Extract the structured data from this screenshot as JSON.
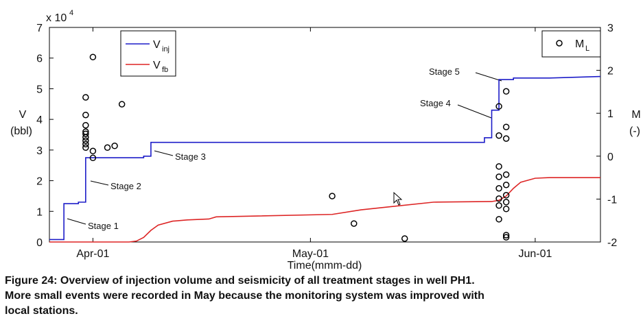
{
  "chart_data": {
    "type": "line",
    "axis_multiplier": "x 10",
    "axis_multiplier_exponent": "4",
    "y_label": [
      "V",
      "(bbl)"
    ],
    "y2_label": [
      "M",
      "(-)"
    ],
    "x_label": "Time(mmm-dd)",
    "xlim": [
      "Mar-26",
      "Jun-10"
    ],
    "xticks": [
      "Apr-01",
      "May-01",
      "Jun-01"
    ],
    "ylim": [
      0,
      70000
    ],
    "yticks": [
      {
        "value": 0,
        "label": "0"
      },
      {
        "value": 10000,
        "label": "1"
      },
      {
        "value": 20000,
        "label": "2"
      },
      {
        "value": 30000,
        "label": "3"
      },
      {
        "value": 40000,
        "label": "4"
      },
      {
        "value": 50000,
        "label": "5"
      },
      {
        "value": 60000,
        "label": "6"
      },
      {
        "value": 70000,
        "label": "7"
      }
    ],
    "y2lim": [
      -2,
      3
    ],
    "y2ticks": [
      -2,
      -1,
      0,
      1,
      2,
      3
    ],
    "series": [
      {
        "name": "V",
        "subscript": "inj",
        "color": "#1c1cc8",
        "x": [
          "Mar-26",
          "Mar-28",
          "Mar-28",
          "Mar-30",
          "Mar-30",
          "Mar-31",
          "Mar-31",
          "Apr-08",
          "Apr-08",
          "Apr-09",
          "Apr-09",
          "May-25",
          "May-25",
          "May-26",
          "May-26",
          "May-27",
          "May-27",
          "May-29",
          "May-29",
          "Jun-03",
          "Jun-10"
        ],
        "values": [
          800,
          800,
          12500,
          12500,
          13000,
          13000,
          27500,
          27500,
          28000,
          28000,
          32500,
          32500,
          34000,
          34000,
          43000,
          43000,
          53000,
          53000,
          53500,
          53500,
          54000
        ]
      },
      {
        "name": "V",
        "subscript": "fb",
        "color": "#dd2424",
        "x": [
          "Mar-26",
          "Apr-06",
          "Apr-07",
          "Apr-08",
          "Apr-09",
          "Apr-10",
          "Apr-12",
          "Apr-14",
          "Apr-17",
          "Apr-18",
          "May-04",
          "May-08",
          "May-12",
          "May-18",
          "May-26",
          "May-27",
          "May-28",
          "May-29",
          "May-30",
          "Jun-01",
          "Jun-03",
          "Jun-10"
        ],
        "values": [
          0,
          0,
          300,
          1500,
          3800,
          5500,
          6800,
          7200,
          7500,
          8200,
          9000,
          10500,
          11500,
          13000,
          13200,
          13600,
          15000,
          17500,
          19500,
          20800,
          21000,
          21000
        ]
      },
      {
        "name": "M",
        "subscript": "L",
        "type": "scatter",
        "axis": "y2",
        "color": "#000000",
        "x": [
          "Apr-01",
          "Mar-31",
          "Mar-31",
          "Mar-31",
          "Mar-31",
          "Mar-31",
          "Mar-31",
          "Mar-31",
          "Mar-31",
          "Apr-01",
          "Apr-01",
          "Mar-31",
          "Apr-03",
          "Apr-04",
          "Apr-05",
          "May-04",
          "May-07",
          "May-14",
          "May-28",
          "May-27",
          "May-28",
          "May-27",
          "May-28",
          "May-27",
          "May-28",
          "May-27",
          "May-28",
          "May-27",
          "May-28",
          "May-27",
          "May-28",
          "May-27",
          "May-28",
          "May-27",
          "May-28",
          "May-28"
        ],
        "values": [
          2.31,
          1.37,
          0.96,
          0.57,
          0.52,
          0.44,
          0.36,
          0.28,
          0.2,
          0.12,
          -0.04,
          0.72,
          0.2,
          0.24,
          1.21,
          -0.93,
          -1.57,
          -1.92,
          1.51,
          1.16,
          0.68,
          0.48,
          0.41,
          -0.24,
          -0.43,
          -0.48,
          -0.67,
          -0.75,
          -0.91,
          -0.99,
          -1.07,
          -1.15,
          -1.23,
          -1.47,
          -1.84,
          -1.89
        ]
      }
    ],
    "annotations": [
      "Stage 1",
      "Stage 2",
      "Stage 3",
      "Stage 4",
      "Stage 5"
    ],
    "caption_lines": [
      "Figure 24: Overview of injection volume and seismicity of all treatment stages in well PH1.",
      "More small events were recorded in May because the monitoring system was improved with",
      "local stations."
    ]
  }
}
